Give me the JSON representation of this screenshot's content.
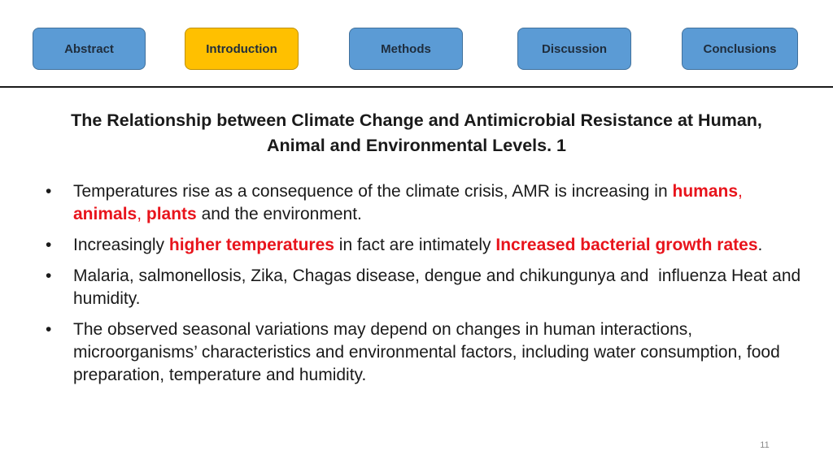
{
  "nav": {
    "abstract": "Abstract",
    "introduction": "Introduction",
    "methods": "Methods",
    "discussion": "Discussion",
    "conclusions": "Conclusions",
    "active": "introduction"
  },
  "colors": {
    "nav_default": "#5b9bd5",
    "nav_active": "#ffc000",
    "highlight": "#e8141c"
  },
  "title": {
    "line1": "The Relationship between Climate Change and Antimicrobial Resistance at Human,",
    "line2": "Animal and Environmental Levels. 1"
  },
  "bullet_symbol": "•",
  "bullets": [
    {
      "t1": "Temperatures rise as a consequence of the climate crisis, AMR is increasing in ",
      "h1": "humans",
      "s1": ", ",
      "h2": "animals",
      "s2": ", ",
      "h3": "plants",
      "t2": " and the environment."
    },
    {
      "t1": "Increasingly ",
      "h1": "higher temperatures",
      "t2": " in fact are intimately ",
      "h2": "Increased bacterial growth rates",
      "t3": "."
    },
    {
      "text": "Malaria, salmonellosis, Zika, Chagas disease, dengue and chikungunya and  influenza Heat and humidity."
    },
    {
      "text": "The observed seasonal variations may depend on changes in human interactions, microorganisms’ characteristics and environmental factors, including water consumption, food preparation, temperature and humidity."
    }
  ],
  "page_number": "11"
}
